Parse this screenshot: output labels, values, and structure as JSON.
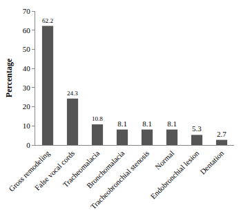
{
  "chart_data": {
    "type": "bar",
    "y_label": "Percentage",
    "categories": [
      "Gross remodeling",
      "False vocal cords",
      "Tracheomalacia",
      "Bronchomalacia",
      "Tracheobronchial stenosis",
      "Normal",
      "Endobronchial lesion",
      "Dentation"
    ],
    "values": [
      62.2,
      24.3,
      10.8,
      8.1,
      8.1,
      8.1,
      5.3,
      2.7
    ],
    "color": "#555555",
    "ylim": [
      0,
      70
    ],
    "yticks": [
      0,
      10,
      20,
      30,
      40,
      50,
      60,
      70
    ],
    "grid": false,
    "data_labels": true
  }
}
